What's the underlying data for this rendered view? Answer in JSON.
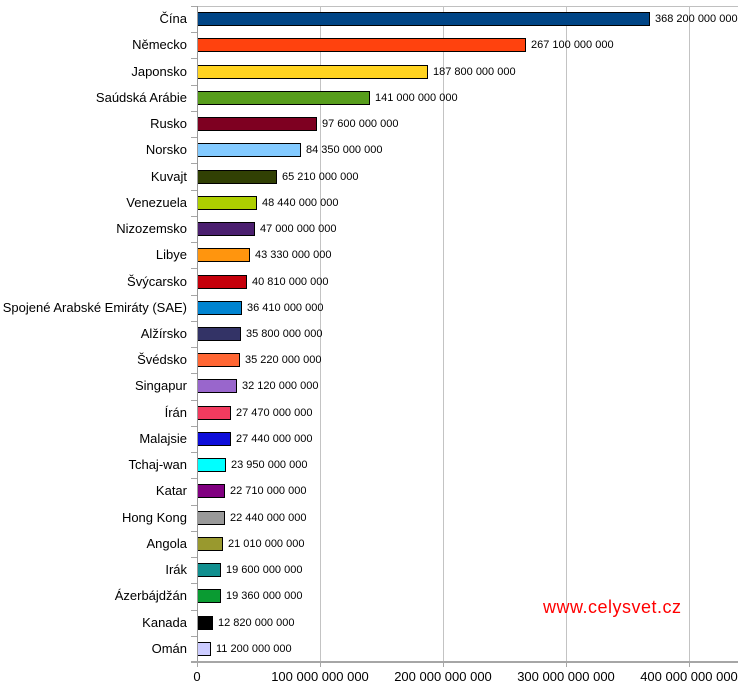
{
  "chart_data": {
    "type": "bar",
    "orientation": "horizontal",
    "title": "",
    "xlabel": "",
    "ylabel": "",
    "grid": "vertical",
    "xlim": [
      0,
      440000000000
    ],
    "categories": [
      "Čína",
      "Německo",
      "Japonsko",
      "Saúdská Arábie",
      "Rusko",
      "Norsko",
      "Kuvajt",
      "Venezuela",
      "Nizozemsko",
      "Libye",
      "Švýcarsko",
      "Spojené Arabské Emiráty (SAE)",
      "Alžírsko",
      "Švédsko",
      "Singapur",
      "Írán",
      "Malajsie",
      "Tchaj-wan",
      "Katar",
      "Hong Kong",
      "Angola",
      "Irák",
      "Ázerbájdžán",
      "Kanada",
      "Omán"
    ],
    "values": [
      368200000000,
      267100000000,
      187800000000,
      141000000000,
      97600000000,
      84350000000,
      65210000000,
      48440000000,
      47000000000,
      43330000000,
      40810000000,
      36410000000,
      35800000000,
      35220000000,
      32120000000,
      27470000000,
      27440000000,
      23950000000,
      22710000000,
      22440000000,
      21010000000,
      19600000000,
      19360000000,
      12820000000,
      11200000000
    ],
    "value_labels": [
      "368 200 000 000",
      "267 100 000 000",
      "187 800 000 000",
      "141 000 000 000",
      "97 600 000 000",
      "84 350 000 000",
      "65 210 000 000",
      "48 440 000 000",
      "47 000 000 000",
      "43 330 000 000",
      "40 810 000 000",
      "36 410 000 000",
      "35 800 000 000",
      "35 220 000 000",
      "32 120 000 000",
      "27 470 000 000",
      "27 440 000 000",
      "23 950 000 000",
      "22 710 000 000",
      "22 440 000 000",
      "21 010 000 000",
      "19 600 000 000",
      "19 360 000 000",
      "12 820 000 000",
      "11 200 000 000"
    ],
    "bar_colors": [
      "#004586",
      "#ff420e",
      "#ffd320",
      "#579d1c",
      "#7e0021",
      "#83caff",
      "#314004",
      "#aecf00",
      "#4b1f6f",
      "#ff950e",
      "#c5000b",
      "#0084d1",
      "#333366",
      "#ff6633",
      "#9966cc",
      "#f23b5f",
      "#0d0dd9",
      "#00ffff",
      "#800080",
      "#999999",
      "#99992e",
      "#118f8f",
      "#0a9b32",
      "#000000",
      "#ccccff"
    ],
    "x_tick_values": [
      0,
      100000000000,
      200000000000,
      300000000000,
      400000000000
    ],
    "x_tick_labels": [
      "0",
      "100 000 000 000",
      "200 000 000 000",
      "300 000 000 000",
      "400 000 000 000"
    ]
  },
  "watermark": {
    "text": "www.celysvet.cz",
    "color": "#ff0000"
  }
}
